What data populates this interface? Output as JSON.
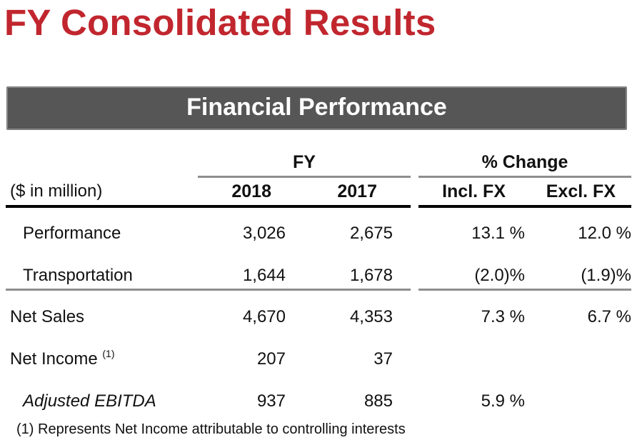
{
  "title": "FY Consolidated Results",
  "banner": "Financial Performance",
  "table": {
    "group_headers": {
      "fy": "FY",
      "pct_change": "% Change"
    },
    "unit_label": "($ in million)",
    "columns": [
      "2018",
      "2017",
      "Incl. FX",
      "Excl. FX"
    ],
    "rows": [
      {
        "label": "Performance",
        "values": [
          "3,026",
          "2,675",
          "13.1 %",
          "12.0 %"
        ]
      },
      {
        "label": "Transportation",
        "values": [
          "1,644",
          "1,678",
          "(2.0)%",
          "(1.9)%"
        ]
      },
      {
        "label": "Net Sales",
        "values": [
          "4,670",
          "4,353",
          "7.3 %",
          "6.7 %"
        ]
      },
      {
        "label": "Net Income",
        "superscript": "(1)",
        "values": [
          "207",
          "37",
          "",
          ""
        ]
      },
      {
        "label": "Adjusted EBITDA",
        "values": [
          "937",
          "885",
          "5.9 %",
          ""
        ]
      }
    ]
  },
  "footnote": "(1) Represents Net Income attributable to controlling interests",
  "colors": {
    "title": "#c1262e",
    "banner_bg": "#565656",
    "banner_text": "#ffffff"
  }
}
